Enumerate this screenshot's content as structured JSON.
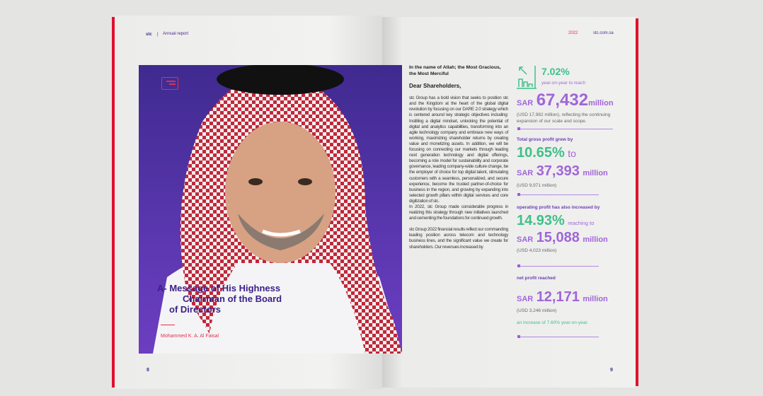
{
  "left_page": {
    "brand": "stc",
    "separator": "|",
    "section": "Annual report",
    "title_lines": [
      "A- Message of His Highness",
      "Chairman of the Board",
      "of Directors"
    ],
    "name": "Mohammed K. A. Al Faisal",
    "page_number": "8",
    "icon": "chat-bubble-icon"
  },
  "right_page": {
    "year": "2022",
    "website": "stc.com.sa",
    "page_number": "9",
    "greeting": "In the name of Allah; the Most Gracious, the Most Merciful",
    "salutation": "Dear Shareholders,",
    "paragraphs": [
      "stc Group has a bold vision that seeks to position stc and the Kingdom at the heart of the global digital revolution by focusing on our DARE 2.0 strategy which is centered around key strategic objectives including: Instilling a digital mindset, unlocking the potential of digital and analytics capabilities, transforming into an agile technology company and embrace new ways of working, maximizing shareholder returns by creating value and monetizing assets. In addition, we will be focusing on connecting our markets through leading next generation technology and digital offerings, becoming a role model for sustainability and corporate governance, leading company-wide culture change, be the employer of choice for top digital talent, stimulating customers with a seamless, personalized, and secure experience, become the trusted partner-of-choice for business in the region, and growing by expanding into selected growth pillars within digital services and core digitization of stc.",
      "In 2022, stc Group made considerable progress in realizing this strategy through new initiatives launched and cementing the foundations for continued growth.",
      "stc Group 2022 financial results reflect our commanding leading position across telecom and technology business lines, and the significant value we create for shareholders. Our revenues increased by"
    ],
    "stats": {
      "revenue": {
        "pct": "7.02%",
        "pct_text": "year-on-year to reach",
        "sar": "SAR",
        "value": "67,432",
        "unit": "million",
        "note": "(USD 17,982 million), reflecting the continuing expansion of our scale and scope."
      },
      "gross": {
        "label": "Total gross profit grew by",
        "pct": "10.65%",
        "pct_text": "to",
        "sar": "SAR",
        "value": "37,393",
        "unit": "million",
        "note": "(USD 9,971 million)"
      },
      "operating": {
        "label": "operating profit has also increased by",
        "pct": "14.93%",
        "pct_text": "reaching to",
        "sar": "SAR",
        "value": "15,088",
        "unit": "million",
        "note": "(USD 4,023 million)"
      },
      "net": {
        "label": "net profit reached",
        "sar": "SAR",
        "value": "12,171",
        "unit": "million",
        "note": "(USD 3,246 million)",
        "increase": "an increase of 7.60% year-on-year."
      }
    }
  },
  "colors": {
    "purple": "#4b2a8c",
    "lilac": "#a066d8",
    "green": "#3fc08a",
    "red": "#e0102e"
  }
}
